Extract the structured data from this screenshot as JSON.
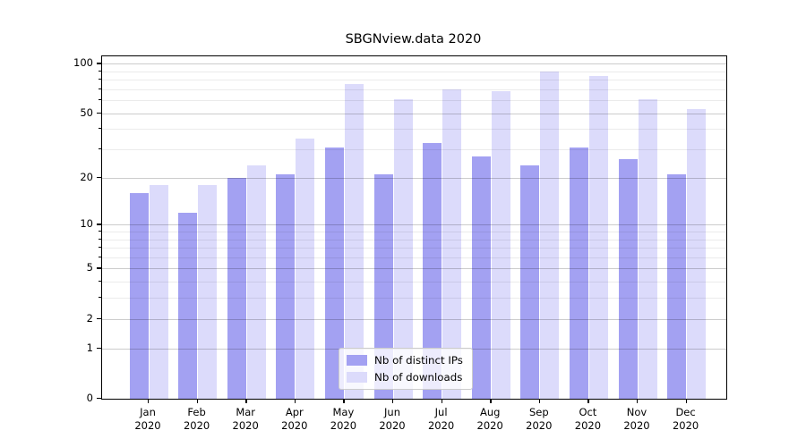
{
  "title": "SBGNview.data 2020",
  "chart_data": {
    "type": "bar",
    "title": "SBGNview.data 2020",
    "categories": [
      "Jan",
      "Feb",
      "Mar",
      "Apr",
      "May",
      "Jun",
      "Jul",
      "Aug",
      "Sep",
      "Oct",
      "Nov",
      "Dec"
    ],
    "category_year_line": "2020",
    "series": [
      {
        "name": "Nb of distinct IPs",
        "color": "#a3a1f2",
        "values": [
          16,
          12,
          20,
          21,
          31,
          21,
          33,
          27,
          24,
          31,
          26,
          21
        ]
      },
      {
        "name": "Nb of downloads",
        "color": "#dcdbfb",
        "values": [
          18,
          18,
          24,
          35,
          75,
          61,
          70,
          68,
          90,
          84,
          61,
          53
        ]
      }
    ],
    "y_axis": {
      "scale": "log-plus-one",
      "major_ticks": [
        0,
        1,
        2,
        5,
        10,
        20,
        50,
        100
      ],
      "minor_ticks": [
        3,
        4,
        6,
        7,
        8,
        9,
        30,
        40,
        60,
        70,
        80,
        90
      ],
      "ylim": [
        0,
        110.7
      ]
    },
    "grid": "horizontal major+minor",
    "legend_position": "lower center"
  },
  "colors": {
    "bar_distinct_ips": "#a3a1f2",
    "bar_downloads": "#dcdbfb",
    "grid_major": "#c9c9c9",
    "grid_minor": "#e9e9e9",
    "axis": "#000000",
    "legend_border": "#cccccc"
  }
}
